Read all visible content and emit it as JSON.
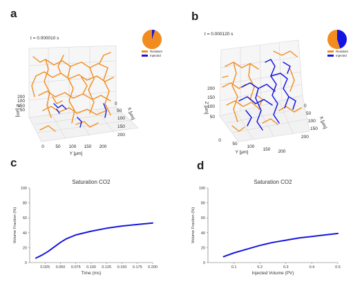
{
  "panels": {
    "a": {
      "letter": "a",
      "time_label": "t = 0.000010 s",
      "pie": {
        "resident_fraction": 0.95,
        "injected_fraction": 0.05
      },
      "legend": [
        {
          "label": "Resident",
          "color": "#f28c1e"
        },
        {
          "label": "Injected",
          "color": "#1414e0"
        }
      ],
      "axes": {
        "y_label": "Y [μm]",
        "y_ticks": [
          "0",
          "50",
          "100",
          "150",
          "200"
        ],
        "z_label": "Z [μm]",
        "z_ticks": [
          "50",
          "100",
          "150",
          "200"
        ],
        "x_label": "X [μm]",
        "x_ticks": [
          "0",
          "50",
          "100",
          "150",
          "200"
        ]
      }
    },
    "b": {
      "letter": "b",
      "time_label": "t = 0.000120 s",
      "pie": {
        "resident_fraction": 0.55,
        "injected_fraction": 0.45
      },
      "legend": [
        {
          "label": "Resident",
          "color": "#f28c1e"
        },
        {
          "label": "Injected",
          "color": "#1414e0"
        }
      ],
      "axes": {
        "y_label": "Y [μm]",
        "y_ticks": [
          "0",
          "50",
          "100",
          "150",
          "200"
        ],
        "z_label": "Z [μm]",
        "z_ticks": [
          "50",
          "100",
          "150",
          "200"
        ],
        "x_label": "X [μm]",
        "x_ticks": [
          "0",
          "50",
          "100",
          "150",
          "200"
        ]
      }
    },
    "c": {
      "letter": "c"
    },
    "d": {
      "letter": "d"
    }
  },
  "chart_data": [
    {
      "panel": "c",
      "type": "line",
      "title": "Saturation CO2",
      "xlabel": "Time (ms)",
      "ylabel": "Volume Fraction (%)",
      "xlim": [
        0.0,
        0.2
      ],
      "ylim": [
        0,
        100
      ],
      "xticks": [
        0.025,
        0.05,
        0.075,
        0.1,
        0.125,
        0.15,
        0.175,
        0.2
      ],
      "xtick_labels": [
        "0.025",
        "0.050",
        "0.075",
        "0.100",
        "0.125",
        "0.150",
        "0.175",
        "0.200"
      ],
      "yticks": [
        0,
        20,
        40,
        60,
        80,
        100
      ],
      "ytick_labels": [
        "0",
        "20",
        "40",
        "60",
        "80",
        "100"
      ],
      "color": "#1414e0",
      "x": [
        0.01,
        0.02,
        0.03,
        0.04,
        0.05,
        0.06,
        0.075,
        0.1,
        0.125,
        0.15,
        0.175,
        0.2
      ],
      "y": [
        6,
        10,
        15,
        21,
        27,
        32,
        37,
        42,
        46,
        49,
        51,
        53
      ]
    },
    {
      "panel": "d",
      "type": "line",
      "title": "Saturation CO2",
      "xlabel": "Injected Volume (PV)",
      "ylabel": "Volume Fraction (%)",
      "xlim": [
        0.0,
        0.5
      ],
      "ylim": [
        0,
        100
      ],
      "xticks": [
        0.1,
        0.2,
        0.3,
        0.4,
        0.5
      ],
      "xtick_labels": [
        "0.1",
        "0.2",
        "0.3",
        "0.4",
        "0.5"
      ],
      "yticks": [
        0,
        20,
        40,
        60,
        80,
        100
      ],
      "ytick_labels": [
        "0",
        "20",
        "40",
        "60",
        "80",
        "100"
      ],
      "color": "#1414e0",
      "x": [
        0.06,
        0.1,
        0.15,
        0.2,
        0.25,
        0.3,
        0.35,
        0.4,
        0.45,
        0.5
      ],
      "y": [
        8,
        13,
        18,
        23,
        27,
        30,
        33,
        35,
        37,
        39
      ]
    }
  ]
}
